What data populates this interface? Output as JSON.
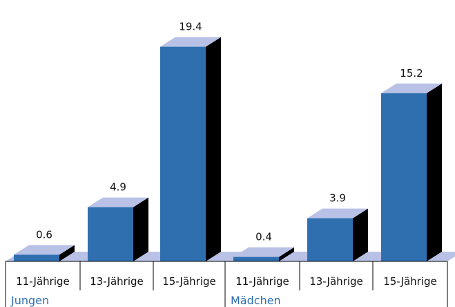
{
  "chart_data": {
    "type": "bar",
    "style": "3d",
    "groups": [
      {
        "name": "Jungen",
        "categories": [
          "11-Jährige",
          "13-Jährige",
          "15-Jährige"
        ],
        "values": [
          0.6,
          4.9,
          19.4
        ]
      },
      {
        "name": "Mädchen",
        "categories": [
          "11-Jährige",
          "13-Jährige",
          "15-Jährige"
        ],
        "values": [
          0.4,
          3.9,
          15.2
        ]
      }
    ],
    "title": "",
    "xlabel": "",
    "ylabel": "",
    "ylim": [
      0,
      20
    ],
    "grid": false,
    "legend": "none"
  },
  "colors": {
    "bar_front": "#2f6fb0",
    "bar_top": "#b9c2e6",
    "bar_side": "#000000",
    "floor": "#b9c2e6",
    "axis": "#000000",
    "group_label": "#2f6fb0"
  }
}
